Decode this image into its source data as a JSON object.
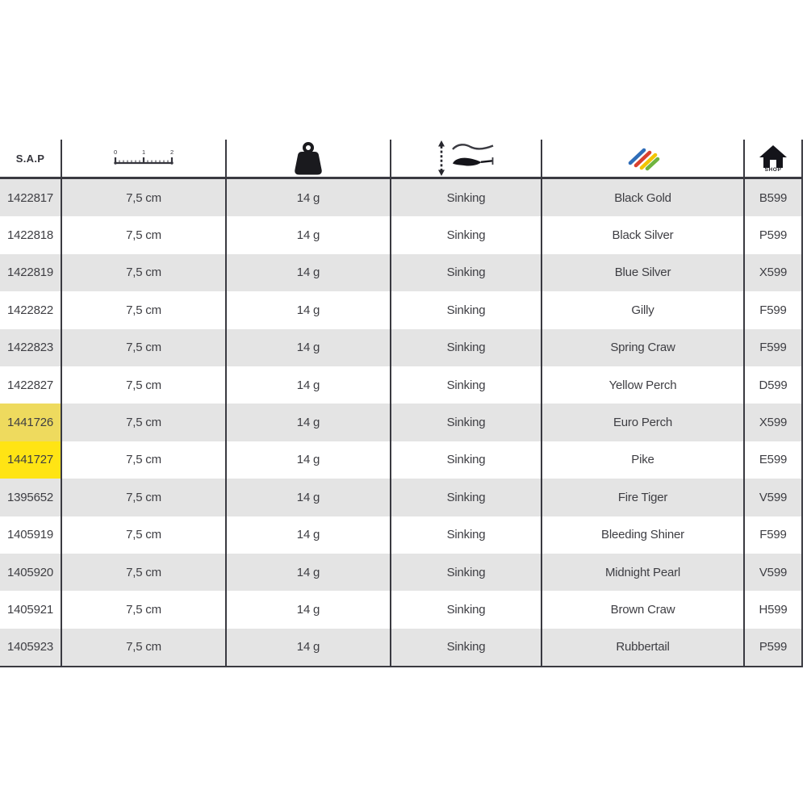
{
  "chart_data": {
    "type": "table",
    "column_keys": [
      "sap",
      "length",
      "weight",
      "type",
      "color",
      "code"
    ],
    "headers": [
      {
        "label": "S.A.P",
        "icon": null
      },
      {
        "label": "",
        "icon": "ruler-icon",
        "tick_labels": [
          "0",
          "1",
          "2"
        ]
      },
      {
        "label": "",
        "icon": "weight-icon"
      },
      {
        "label": "",
        "icon": "sinking-lure-icon"
      },
      {
        "label": "",
        "icon": "color-strokes-icon"
      },
      {
        "label": "",
        "icon": "shop-house-icon",
        "caption": "SHOP"
      }
    ],
    "rows": [
      {
        "sap": "1422817",
        "length": "7,5 cm",
        "weight": "14 g",
        "type": "Sinking",
        "color": "Black Gold",
        "code": "B599",
        "highlight": false
      },
      {
        "sap": "1422818",
        "length": "7,5 cm",
        "weight": "14 g",
        "type": "Sinking",
        "color": "Black Silver",
        "code": "P599",
        "highlight": false
      },
      {
        "sap": "1422819",
        "length": "7,5 cm",
        "weight": "14 g",
        "type": "Sinking",
        "color": "Blue Silver",
        "code": "X599",
        "highlight": false
      },
      {
        "sap": "1422822",
        "length": "7,5 cm",
        "weight": "14 g",
        "type": "Sinking",
        "color": "Gilly",
        "code": "F599",
        "highlight": false
      },
      {
        "sap": "1422823",
        "length": "7,5 cm",
        "weight": "14 g",
        "type": "Sinking",
        "color": "Spring Craw",
        "code": "F599",
        "highlight": false
      },
      {
        "sap": "1422827",
        "length": "7,5 cm",
        "weight": "14 g",
        "type": "Sinking",
        "color": "Yellow Perch",
        "code": "D599",
        "highlight": false
      },
      {
        "sap": "1441726",
        "length": "7,5 cm",
        "weight": "14 g",
        "type": "Sinking",
        "color": "Euro Perch",
        "code": "X599",
        "highlight": true
      },
      {
        "sap": "1441727",
        "length": "7,5 cm",
        "weight": "14 g",
        "type": "Sinking",
        "color": "Pike",
        "code": "E599",
        "highlight": true
      },
      {
        "sap": "1395652",
        "length": "7,5 cm",
        "weight": "14 g",
        "type": "Sinking",
        "color": "Fire Tiger",
        "code": "V599",
        "highlight": false
      },
      {
        "sap": "1405919",
        "length": "7,5 cm",
        "weight": "14 g",
        "type": "Sinking",
        "color": "Bleeding Shiner",
        "code": "F599",
        "highlight": false
      },
      {
        "sap": "1405920",
        "length": "7,5 cm",
        "weight": "14 g",
        "type": "Sinking",
        "color": "Midnight Pearl",
        "code": "V599",
        "highlight": false
      },
      {
        "sap": "1405921",
        "length": "7,5 cm",
        "weight": "14 g",
        "type": "Sinking",
        "color": "Brown Craw",
        "code": "H599",
        "highlight": false
      },
      {
        "sap": "1405923",
        "length": "7,5 cm",
        "weight": "14 g",
        "type": "Sinking",
        "color": "Rubbertail",
        "code": "P599",
        "highlight": false
      }
    ],
    "layout": {
      "row_striping": "first row gray, alternating",
      "highlighted_sap_cells": [
        "1441726",
        "1441727"
      ]
    }
  },
  "colors": {
    "row_alt_gray": "#e4e4e4",
    "row_white": "#ffffff",
    "grid_line": "#3a3a41",
    "text": "#3e3e43",
    "highlight_on_gray": "#eeda5e",
    "highlight_on_white": "#ffe414",
    "icon_black": "#1a1a1e",
    "icon_blue": "#2f6db8",
    "icon_red": "#d8402f",
    "icon_yellow": "#f2c500",
    "icon_green": "#6fb43f"
  }
}
